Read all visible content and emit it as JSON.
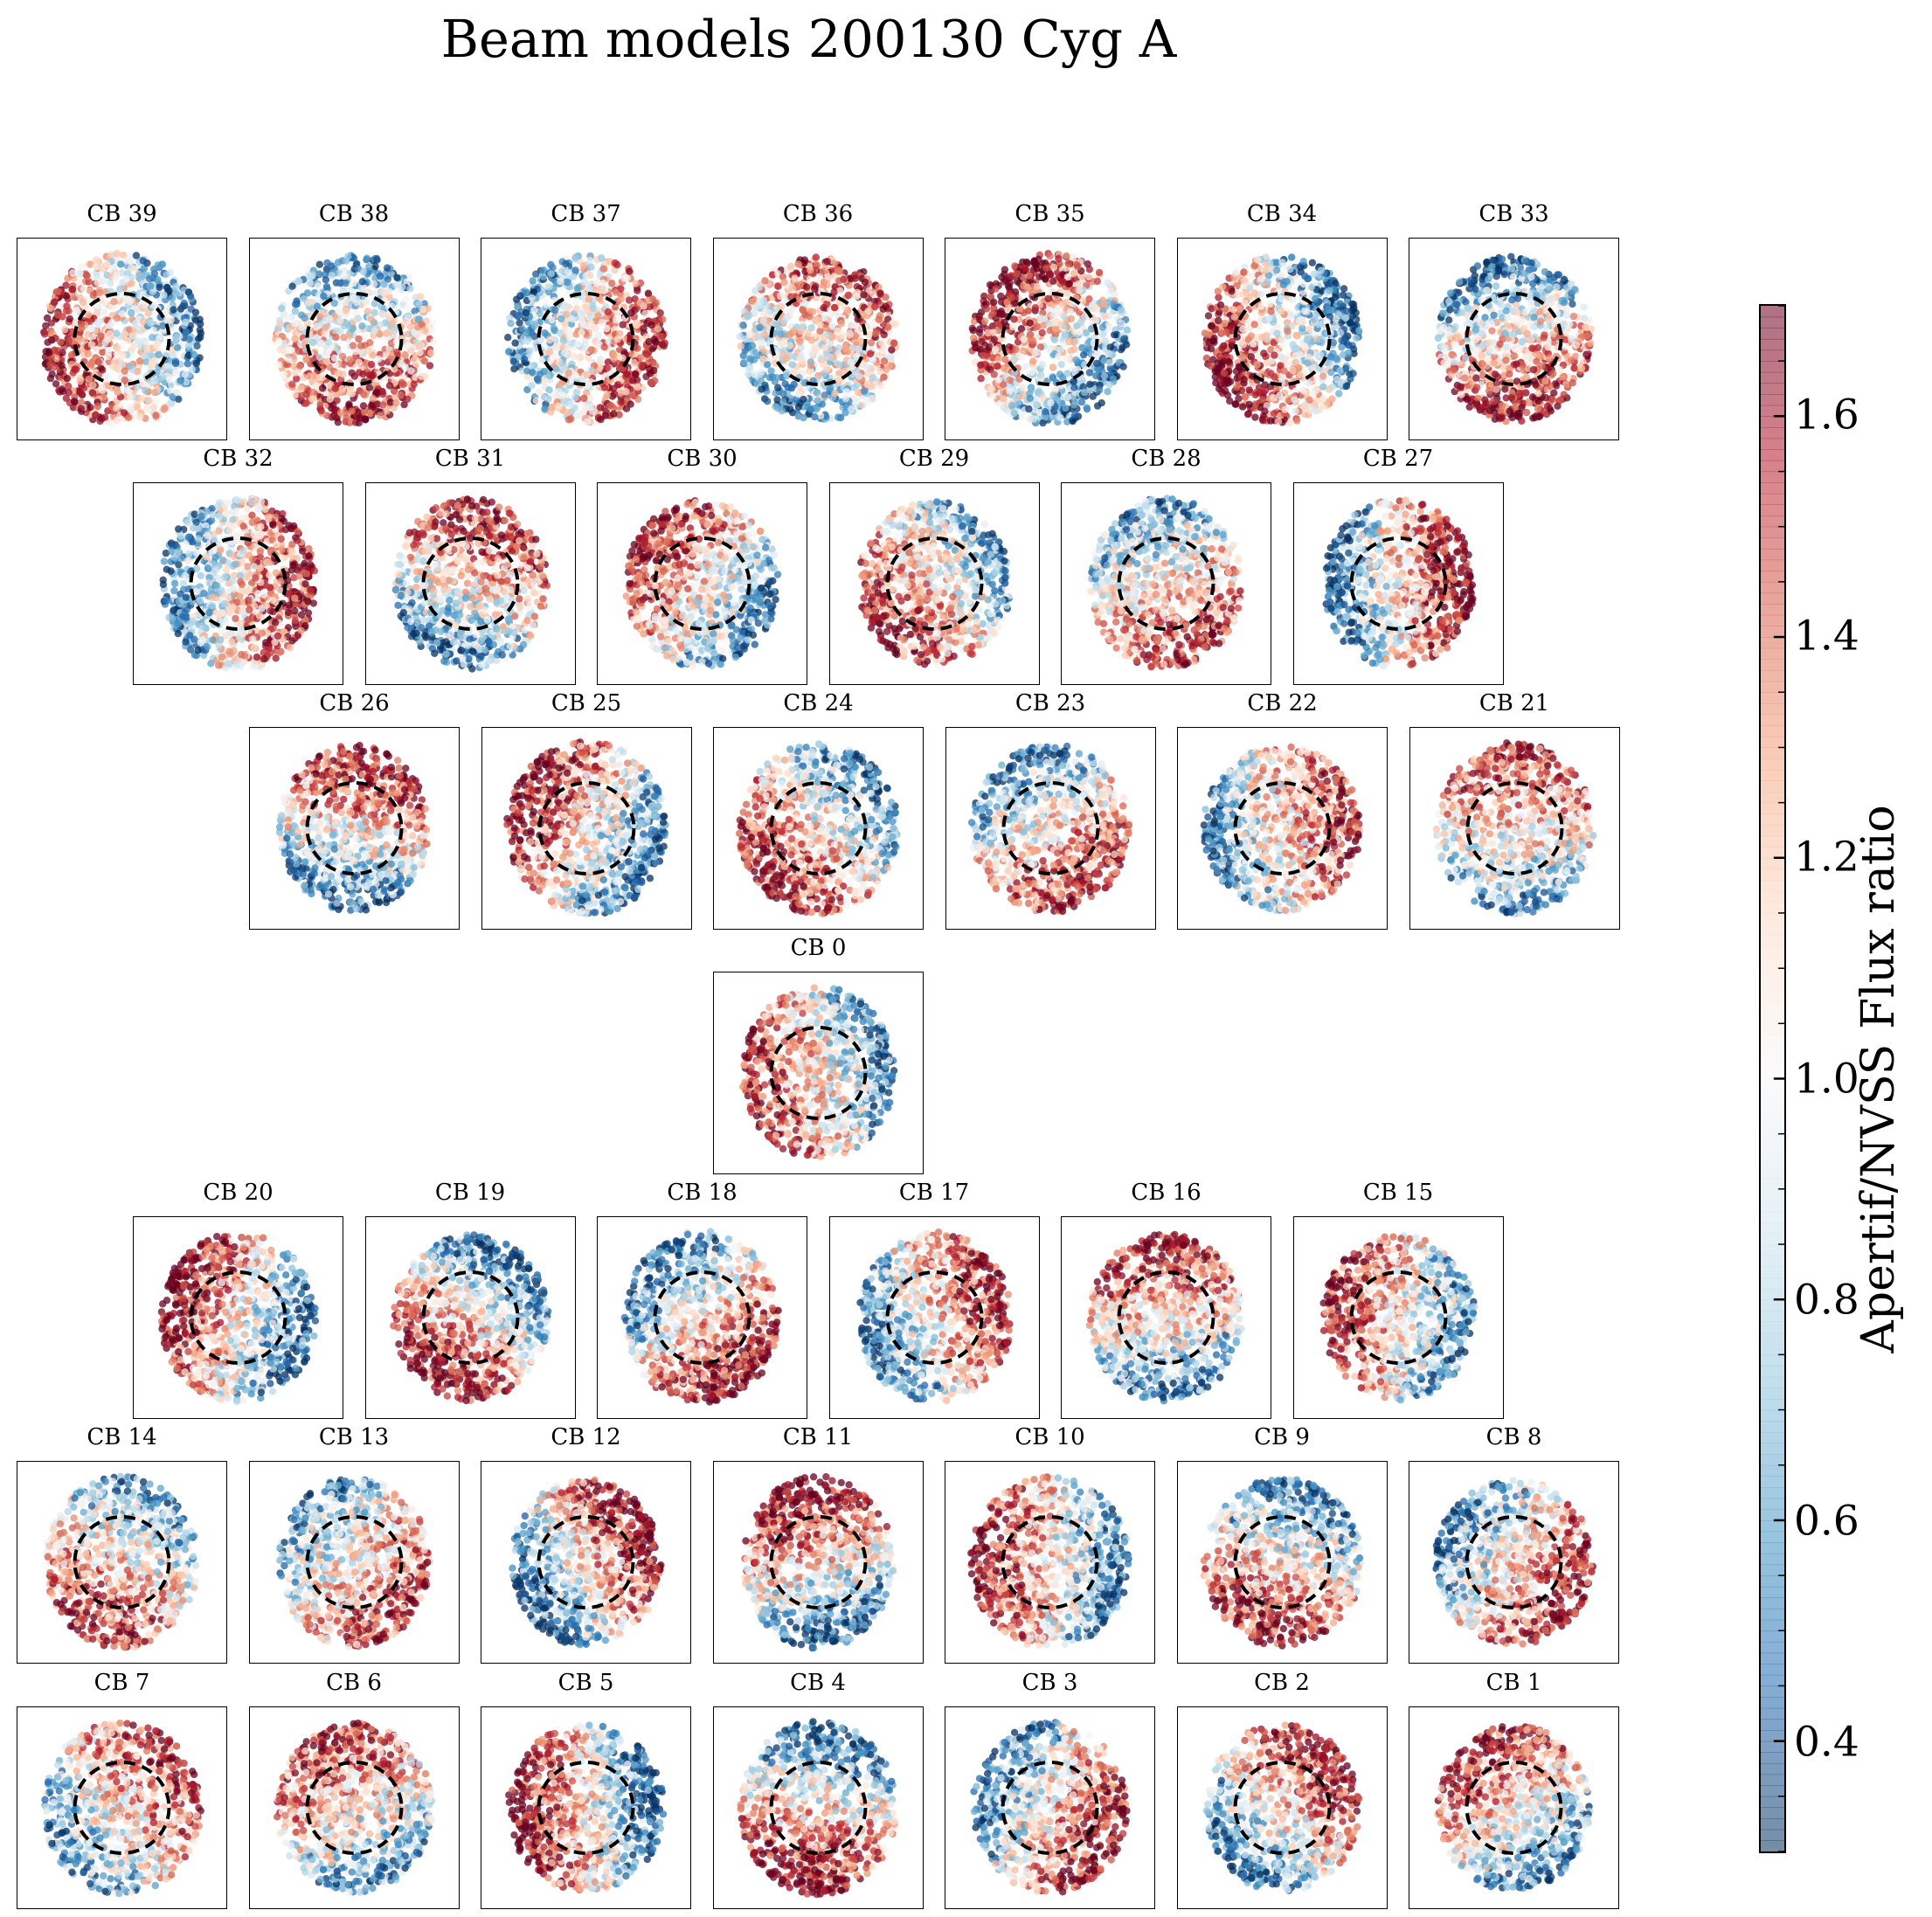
{
  "title": "Beam models 200130 Cyg A",
  "chart_data": {
    "type": "scatter",
    "title": "Beam models 200130 Cyg A",
    "panels": [
      [
        "CB 39",
        "CB 38",
        "CB 37",
        "CB 36",
        "CB 35",
        "CB 34",
        "CB 33"
      ],
      [
        "CB 32",
        "CB 31",
        "CB 30",
        "CB 29",
        "CB 28",
        "CB 27"
      ],
      [
        "CB 26",
        "CB 25",
        "CB 24",
        "CB 23",
        "CB 22",
        "CB 21"
      ],
      [
        "CB 0"
      ],
      [
        "CB 20",
        "CB 19",
        "CB 18",
        "CB 17",
        "CB 16",
        "CB 15"
      ],
      [
        "CB 14",
        "CB 13",
        "CB 12",
        "CB 11",
        "CB 10",
        "CB 9",
        "CB 8"
      ],
      [
        "CB 7",
        "CB 6",
        "CB 5",
        "CB 4",
        "CB 3",
        "CB 2",
        "CB 1"
      ]
    ],
    "colorbar": {
      "label": "Apertif/NVSS Flux ratio",
      "range": [
        0.3,
        1.7
      ],
      "ticks": [
        "0.4",
        "0.6",
        "0.8",
        "1.0",
        "1.2",
        "1.4",
        "1.6"
      ],
      "colormap": "RdBu_r"
    },
    "marker": "dashed black circle at panel center",
    "colors": {
      "low": "#2166ac",
      "mid": "#f7f7f7",
      "high": "#b2182b"
    }
  }
}
